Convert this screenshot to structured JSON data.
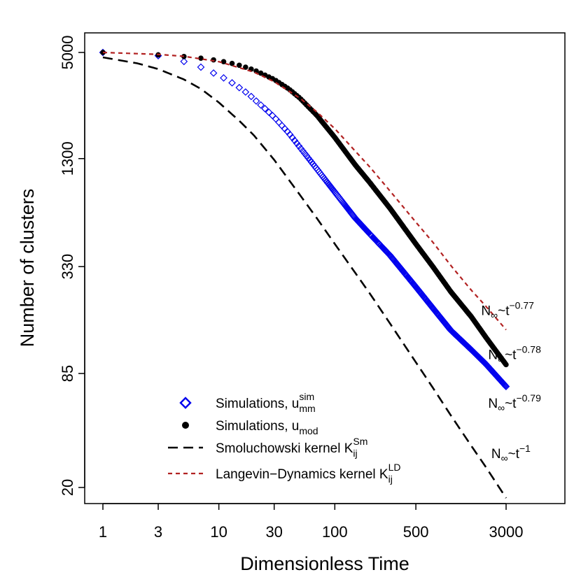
{
  "chart_data": {
    "type": "scatter",
    "xlabel": "Dimensionless Time",
    "ylabel": "Number of clusters",
    "x_scale": "log",
    "y_scale": "log",
    "xlim": [
      0.7,
      7000
    ],
    "ylim": [
      17,
      5800
    ],
    "x_ticks": [
      1,
      3,
      10,
      30,
      100,
      500,
      3000
    ],
    "x_tick_labels": [
      "1",
      "3",
      "10",
      "30",
      "100",
      "500",
      "3000"
    ],
    "y_ticks": [
      20,
      85,
      330,
      1300,
      5000
    ],
    "y_tick_labels": [
      "20",
      "85",
      "330",
      "1300",
      "5000"
    ],
    "legend_position": "bottom-left",
    "series": [
      {
        "name": "Simulations, u_mm^sim",
        "label_main": "Simulations, u",
        "label_sub": "mm",
        "label_sup": "sim",
        "marker": "open-diamond",
        "color": "#0000ee",
        "x": [
          1,
          3,
          5,
          7,
          9,
          11,
          13,
          15,
          18,
          21,
          25,
          30,
          40,
          50,
          70,
          100,
          150,
          200,
          300,
          500,
          700,
          1000,
          1500,
          2000,
          3000
        ],
        "y": [
          5000,
          4800,
          4460,
          4150,
          3850,
          3620,
          3400,
          3200,
          2950,
          2700,
          2450,
          2200,
          1800,
          1500,
          1140,
          850,
          610,
          500,
          380,
          255,
          195,
          147,
          115,
          96,
          72
        ]
      },
      {
        "name": "Simulations, u_mod",
        "label_main": "Simulations, u",
        "label_sub": "mod",
        "label_sup": "",
        "marker": "filled-circle",
        "color": "#000000",
        "x": [
          1,
          3,
          5,
          7,
          9,
          11,
          13,
          15,
          18,
          21,
          25,
          30,
          40,
          50,
          70,
          100,
          150,
          200,
          300,
          500,
          700,
          1000,
          1500,
          2000,
          3000
        ],
        "y": [
          5000,
          4850,
          4750,
          4650,
          4550,
          4450,
          4350,
          4250,
          4100,
          3950,
          3750,
          3550,
          3150,
          2800,
          2250,
          1700,
          1200,
          960,
          690,
          440,
          330,
          240,
          175,
          135,
          95
        ]
      },
      {
        "name": "Smoluchowski kernel K_ij^Sm",
        "label_main": "Smoluchowski kernel K",
        "label_sub": "ij",
        "label_sup": "Sm",
        "style": "long-dash",
        "color": "#000000",
        "x": [
          1,
          2,
          3,
          5,
          7,
          10,
          15,
          20,
          30,
          50,
          70,
          100,
          150,
          200,
          300,
          500,
          700,
          1000,
          1500,
          2000,
          3000
        ],
        "y": [
          4700,
          4350,
          4050,
          3550,
          3150,
          2650,
          2100,
          1750,
          1280,
          820,
          610,
          440,
          305,
          235,
          160,
          98,
          71,
          50,
          34,
          26,
          17.5
        ]
      },
      {
        "name": "Langevin-Dynamics kernel K_ij^LD",
        "label_main": "Langevin−Dynamics kernel K",
        "label_sub": "ij",
        "label_sup": "LD",
        "style": "short-dash",
        "color": "#b22222",
        "x": [
          1,
          3,
          5,
          10,
          20,
          30,
          50,
          70,
          100,
          150,
          200,
          300,
          500,
          700,
          1000,
          1500,
          2000,
          3000
        ],
        "y": [
          5000,
          4880,
          4760,
          4450,
          3900,
          3450,
          2800,
          2350,
          1900,
          1430,
          1170,
          860,
          580,
          450,
          335,
          245,
          200,
          148
        ]
      }
    ],
    "annotations": [
      {
        "main": "N",
        "sub": "∞",
        "mid": "~t",
        "sup": "−0.77",
        "x": 2700,
        "y": 178
      },
      {
        "main": "N",
        "sub": "∞",
        "mid": "~t",
        "sup": "−0.78",
        "x": 3100,
        "y": 102
      },
      {
        "main": "N",
        "sub": "∞",
        "mid": "~t",
        "sup": "−0.79",
        "x": 3100,
        "y": 55
      },
      {
        "main": "N",
        "sub": "∞",
        "mid": "~t",
        "sup": "−1",
        "x": 3300,
        "y": 29
      }
    ]
  }
}
